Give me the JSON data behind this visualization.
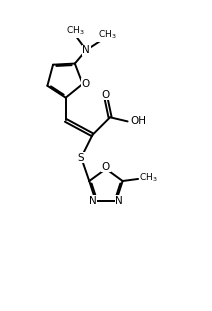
{
  "bg_color": "#ffffff",
  "line_color": "#000000",
  "line_width": 1.4,
  "font_size": 7.5,
  "figsize": [
    2.12,
    3.11
  ],
  "dpi": 100,
  "xlim": [
    0,
    10
  ],
  "ylim": [
    0,
    15
  ]
}
